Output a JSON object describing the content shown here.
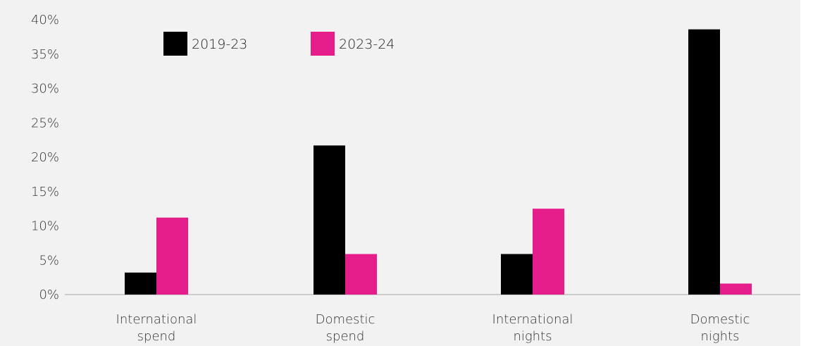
{
  "chart_data": {
    "type": "bar",
    "categories": [
      [
        "International",
        "spend"
      ],
      [
        "Domestic",
        "spend"
      ],
      [
        "International",
        "nights"
      ],
      [
        "Domestic",
        "nights"
      ]
    ],
    "series": [
      {
        "name": "2019-23",
        "color": "#000000",
        "values": [
          3.2,
          21.7,
          5.9,
          38.6
        ]
      },
      {
        "name": "2023-24",
        "color": "#e61e8c",
        "values": [
          11.2,
          5.9,
          12.5,
          1.6
        ]
      }
    ],
    "yticks": [
      "0%",
      "5%",
      "10%",
      "15%",
      "20%",
      "25%",
      "30%",
      "35%",
      "40%"
    ],
    "ylim": [
      0,
      40
    ],
    "grid": false,
    "legend_position": "top-left"
  }
}
